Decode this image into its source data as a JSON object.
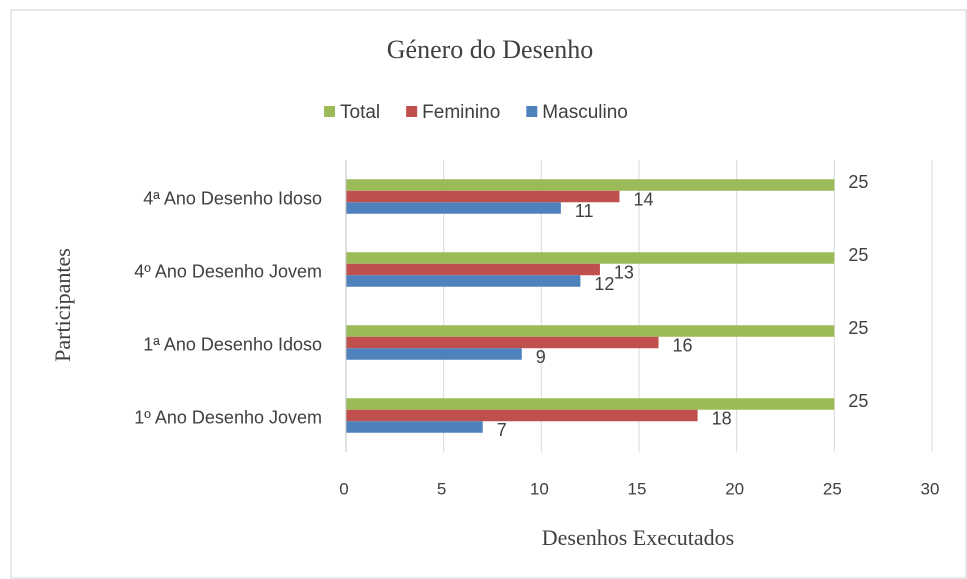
{
  "chart_data": {
    "type": "hbar",
    "title": "Género do Desenho",
    "x_label": "Desenhos Executados",
    "y_label": "Participantes",
    "categories": [
      "1º Ano Desenho Jovem",
      "1ª Ano Desenho Idoso",
      "4º Ano Desenho Jovem",
      "4ª Ano Desenho Idoso"
    ],
    "series": [
      {
        "name": "Total",
        "color": "#9bbb59",
        "values": [
          25,
          25,
          25,
          25
        ]
      },
      {
        "name": "Feminino",
        "color": "#c0504d",
        "values": [
          18,
          16,
          13,
          14
        ]
      },
      {
        "name": "Masculino",
        "color": "#4f81bd",
        "values": [
          7,
          9,
          12,
          11
        ]
      }
    ],
    "xlim": [
      0,
      30
    ],
    "xticks": [
      0,
      5,
      10,
      15,
      20,
      25,
      30
    ],
    "grid": true,
    "legend": "top"
  }
}
